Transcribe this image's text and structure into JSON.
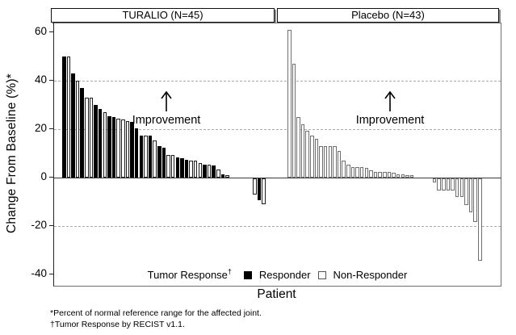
{
  "chart_data": {
    "type": "bar",
    "subtype": "waterfall",
    "title": "",
    "xlabel": "Patient",
    "ylabel": "Change From Baseline (%)*",
    "ylim": [
      -45,
      65
    ],
    "yticks": [
      60,
      40,
      20,
      0,
      -20,
      -40
    ],
    "dashed_gridlines_at": [
      40,
      20,
      -20
    ],
    "grid": "dashed horizontal at 40, 20, -20; solid axis line at 0",
    "legend_position": "inside plot, bottom center",
    "legend": {
      "title": "Tumor Response",
      "title_sup": "†",
      "responder_label": "Responder",
      "nonresponder_label": "Non-Responder"
    },
    "colors": {
      "responder_fill": "#000000",
      "nonresponder_fill": "#ffffff",
      "outline_turalio": "#1c1c1c",
      "outline_placebo": "#6f6f6f",
      "gridline": "#ababab",
      "zero_line": "#3a3a3a"
    },
    "panels": [
      {
        "label": "TURALIO (N=45)",
        "n": 45,
        "annotation": "Improvement",
        "values": [
          50,
          50,
          43,
          40,
          37,
          33,
          33,
          30,
          28.5,
          27,
          25.5,
          25,
          24.5,
          24,
          23.5,
          23,
          20.5,
          17.5,
          17.5,
          17.5,
          15.5,
          13,
          12.5,
          9.5,
          9.5,
          8.5,
          8,
          7.5,
          7,
          7,
          6,
          5.5,
          5.5,
          5,
          3.5,
          1.5,
          1,
          0,
          0,
          0,
          0,
          0,
          -6.5,
          -9,
          -10.5
        ],
        "responder": [
          1,
          0,
          1,
          0,
          1,
          0,
          0,
          1,
          1,
          0,
          1,
          1,
          0,
          0,
          0,
          1,
          1,
          1,
          0,
          1,
          0,
          1,
          1,
          0,
          0,
          1,
          1,
          1,
          0,
          0,
          0,
          1,
          0,
          1,
          0,
          1,
          0,
          0,
          0,
          0,
          0,
          0,
          0,
          1,
          0
        ]
      },
      {
        "label": "Placebo (N=43)",
        "n": 43,
        "annotation": "Improvement",
        "values": [
          61,
          47,
          25,
          22,
          19.5,
          17.5,
          16,
          13,
          13,
          13,
          13,
          11,
          7,
          5.5,
          4.5,
          4.5,
          4.5,
          4,
          3,
          2.5,
          2.5,
          2.5,
          2.5,
          2,
          1.5,
          1.5,
          1,
          1,
          0,
          0,
          0,
          0,
          -1.5,
          -5,
          -5,
          -5,
          -5,
          -7.5,
          -7.5,
          -11,
          -14,
          -18,
          -34
        ],
        "responder": [
          0,
          0,
          0,
          0,
          0,
          0,
          0,
          0,
          0,
          0,
          0,
          0,
          0,
          0,
          0,
          0,
          0,
          0,
          0,
          0,
          0,
          0,
          0,
          0,
          0,
          0,
          0,
          0,
          0,
          0,
          0,
          0,
          0,
          0,
          0,
          0,
          0,
          0,
          0,
          0,
          0,
          0,
          0
        ]
      }
    ],
    "footnotes": [
      "*Percent of normal reference range for the affected joint.",
      "†Tumor Response by RECIST v1.1."
    ]
  }
}
